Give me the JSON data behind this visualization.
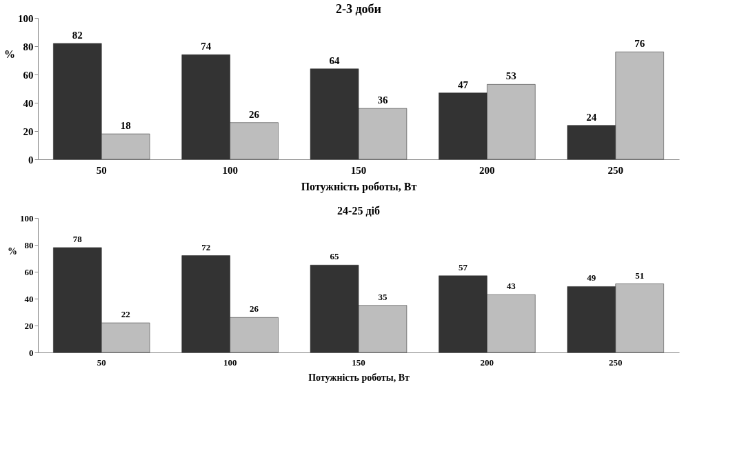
{
  "chart_data": [
    {
      "type": "bar",
      "title": "2-3 доби",
      "xlabel": "Потужність роботы, Вт",
      "ylabel": "%",
      "categories": [
        "50",
        "100",
        "150",
        "200",
        "250"
      ],
      "series": [
        {
          "color": "#333333",
          "values": [
            82,
            74,
            64,
            47,
            24
          ]
        },
        {
          "color": "#bdbdbd",
          "values": [
            18,
            26,
            36,
            53,
            76
          ]
        }
      ],
      "ylim": [
        0,
        100
      ],
      "yticks": [
        0,
        20,
        40,
        60,
        80,
        100
      ],
      "data_labels": true,
      "grid": false,
      "legend": false
    },
    {
      "type": "bar",
      "title": "24-25 діб",
      "xlabel": "Потужність роботы, Вт",
      "ylabel": "%",
      "categories": [
        "50",
        "100",
        "150",
        "200",
        "250"
      ],
      "series": [
        {
          "color": "#333333",
          "values": [
            78,
            72,
            65,
            57,
            49
          ]
        },
        {
          "color": "#bdbdbd",
          "values": [
            22,
            26,
            35,
            43,
            51
          ]
        }
      ],
      "ylim": [
        0,
        100
      ],
      "yticks": [
        0,
        20,
        40,
        60,
        80,
        100
      ],
      "data_labels": true,
      "grid": false,
      "legend": false
    }
  ]
}
